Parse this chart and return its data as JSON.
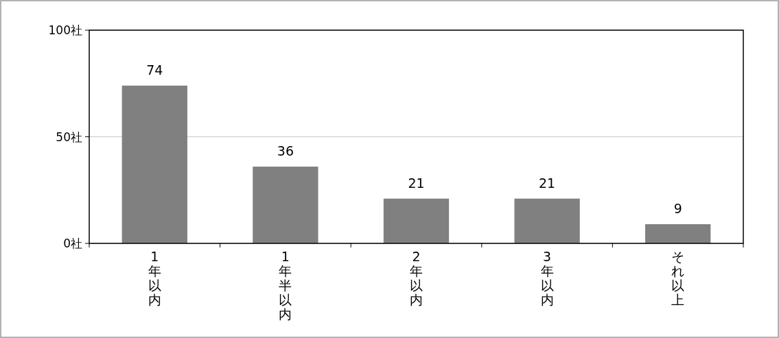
{
  "chart_data": {
    "type": "bar",
    "categories": [
      "1年以内",
      "1年半以内",
      "2年以内",
      "3年以内",
      "それ以上"
    ],
    "values": [
      74,
      36,
      21,
      21,
      9
    ],
    "color": "#808080",
    "ylim": [
      0,
      100
    ],
    "yticks": [
      {
        "value": 0,
        "label": "0社"
      },
      {
        "value": 50,
        "label": "50社"
      },
      {
        "value": 100,
        "label": "100社"
      }
    ],
    "grid": "y",
    "data_labels": true
  }
}
